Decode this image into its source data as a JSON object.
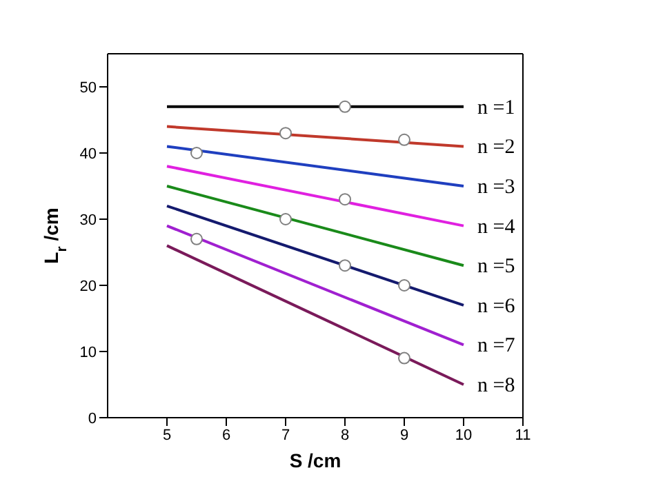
{
  "chart_data": {
    "type": "line",
    "xlabel": "S /cm",
    "ylabel": "L$_{r}$ /cm",
    "xlim": [
      4,
      11
    ],
    "xticks": [
      5,
      6,
      7,
      8,
      9,
      10,
      11
    ],
    "ylim": [
      0,
      55
    ],
    "yticks": [
      0,
      10,
      20,
      30,
      40,
      50
    ],
    "grid": false,
    "legend": false,
    "marker": "none",
    "line_style": "solid",
    "series": [
      {
        "name": "n =1",
        "color": "#000000",
        "x": [
          5,
          10
        ],
        "values": [
          47,
          47
        ]
      },
      {
        "name": "n =2",
        "color": "#c0392b",
        "x": [
          5,
          10
        ],
        "values": [
          44,
          41
        ]
      },
      {
        "name": "n =3",
        "color": "#1f3fbf",
        "x": [
          5,
          10
        ],
        "values": [
          41,
          35
        ]
      },
      {
        "name": "n =4",
        "color": "#e020e0",
        "x": [
          5,
          10
        ],
        "values": [
          38,
          29
        ]
      },
      {
        "name": "n =5",
        "color": "#1a8a1a",
        "x": [
          5,
          10
        ],
        "values": [
          35,
          23
        ]
      },
      {
        "name": "n =6",
        "color": "#141a6e",
        "x": [
          5,
          10
        ],
        "values": [
          32,
          17
        ]
      },
      {
        "name": "n =7",
        "color": "#a020d0",
        "x": [
          5,
          10
        ],
        "values": [
          29,
          11
        ]
      },
      {
        "name": "n =8",
        "color": "#7a1a5a",
        "x": [
          5,
          10
        ],
        "values": [
          26,
          5
        ]
      },
      {
        "type": "scatter",
        "marker": "circle",
        "color": "#808080",
        "x": [
          8,
          7,
          9,
          5.5,
          8,
          7,
          8,
          9,
          5.5,
          9
        ],
        "values": [
          47,
          43,
          42,
          40,
          33,
          30,
          23,
          20,
          27,
          9
        ]
      }
    ]
  }
}
